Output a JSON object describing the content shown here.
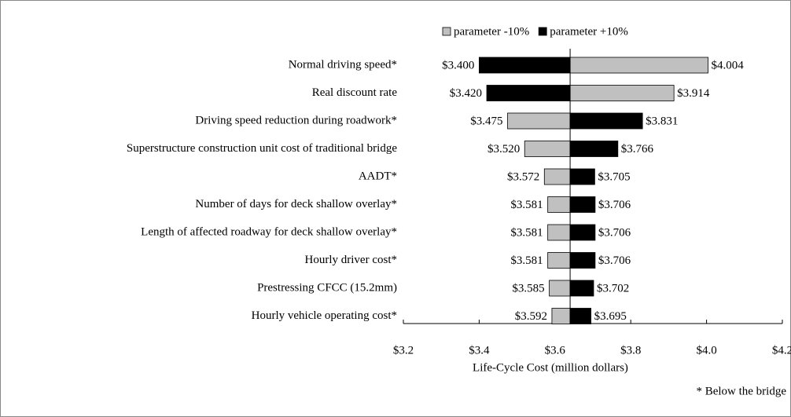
{
  "chart_data": {
    "type": "tornado",
    "categories": [
      "Normal driving speed*",
      "Real discount rate",
      "Driving speed reduction during roadwork*",
      "Superstructure construction unit cost of traditional bridge",
      "AADT*",
      "Number of days for deck shallow overlay*",
      "Length of affected roadway for deck shallow overlay*",
      "Hourly driver cost*",
      "Prestressing CFCC (15.2mm)",
      "Hourly vehicle operating cost*"
    ],
    "baseline": 3.64,
    "series": [
      {
        "name": "parameter -10%",
        "color": "#c0c0c0",
        "values": [
          4.004,
          3.914,
          3.475,
          3.52,
          3.572,
          3.581,
          3.581,
          3.581,
          3.585,
          3.592
        ],
        "value_labels": [
          "$4.004",
          "$3.914",
          "$3.475",
          "$3.520",
          "$3.572",
          "$3.581",
          "$3.581",
          "$3.581",
          "$3.585",
          "$3.592"
        ]
      },
      {
        "name": "parameter +10%",
        "color": "#000000",
        "values": [
          3.4,
          3.42,
          3.831,
          3.766,
          3.705,
          3.706,
          3.706,
          3.706,
          3.702,
          3.695
        ],
        "value_labels": [
          "$3.400",
          "$3.420",
          "$3.831",
          "$3.766",
          "$3.705",
          "$3.706",
          "$3.706",
          "$3.706",
          "$3.702",
          "$3.695"
        ]
      }
    ],
    "xlim": [
      3.2,
      4.2
    ],
    "xticks": [
      {
        "value": 3.2,
        "label": "$3.2"
      },
      {
        "value": 3.4,
        "label": "$3.4"
      },
      {
        "value": 3.6,
        "label": "$3.6"
      },
      {
        "value": 3.8,
        "label": "$3.8"
      },
      {
        "value": 4.0,
        "label": "$4.0"
      },
      {
        "value": 4.2,
        "label": "$4.2"
      }
    ],
    "x_label": "Life-Cycle Cost (million dollars)",
    "annotation": "* Below the bridge",
    "legend": "top"
  }
}
